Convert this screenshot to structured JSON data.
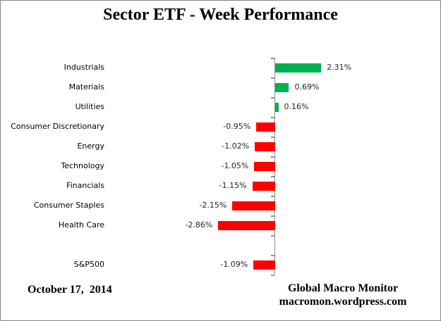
{
  "chart_data": {
    "type": "bar",
    "orientation": "horizontal",
    "title": "Sector ETF - Week Performance",
    "categories": [
      "Industrials",
      "Materials",
      "Utilities",
      "Consumer Discretionary",
      "Energy",
      "Technology",
      "Financials",
      "Consumer Staples",
      "Health Care",
      "",
      "S&P500"
    ],
    "values": [
      2.31,
      0.69,
      0.16,
      -0.95,
      -1.02,
      -1.05,
      -1.15,
      -2.15,
      -2.86,
      null,
      -1.09
    ],
    "value_labels": [
      "2.31%",
      "0.69%",
      "0.16%",
      "-0.95%",
      "-1.02%",
      "-1.05%",
      "-1.15%",
      "-2.15%",
      "-2.86%",
      "",
      "-1.09%"
    ],
    "xlim": [
      -3.5,
      3.5
    ],
    "grid": "off",
    "legend": "none",
    "xlabel": "",
    "ylabel": "",
    "positive_color": "#00B050",
    "negative_color": "#FF0000",
    "axis_color": "#8F8F8F"
  },
  "footer": {
    "date": "October 17,  2014",
    "source_line1": "Global Macro Monitor",
    "source_line2": "macromon.wordpress.com"
  }
}
